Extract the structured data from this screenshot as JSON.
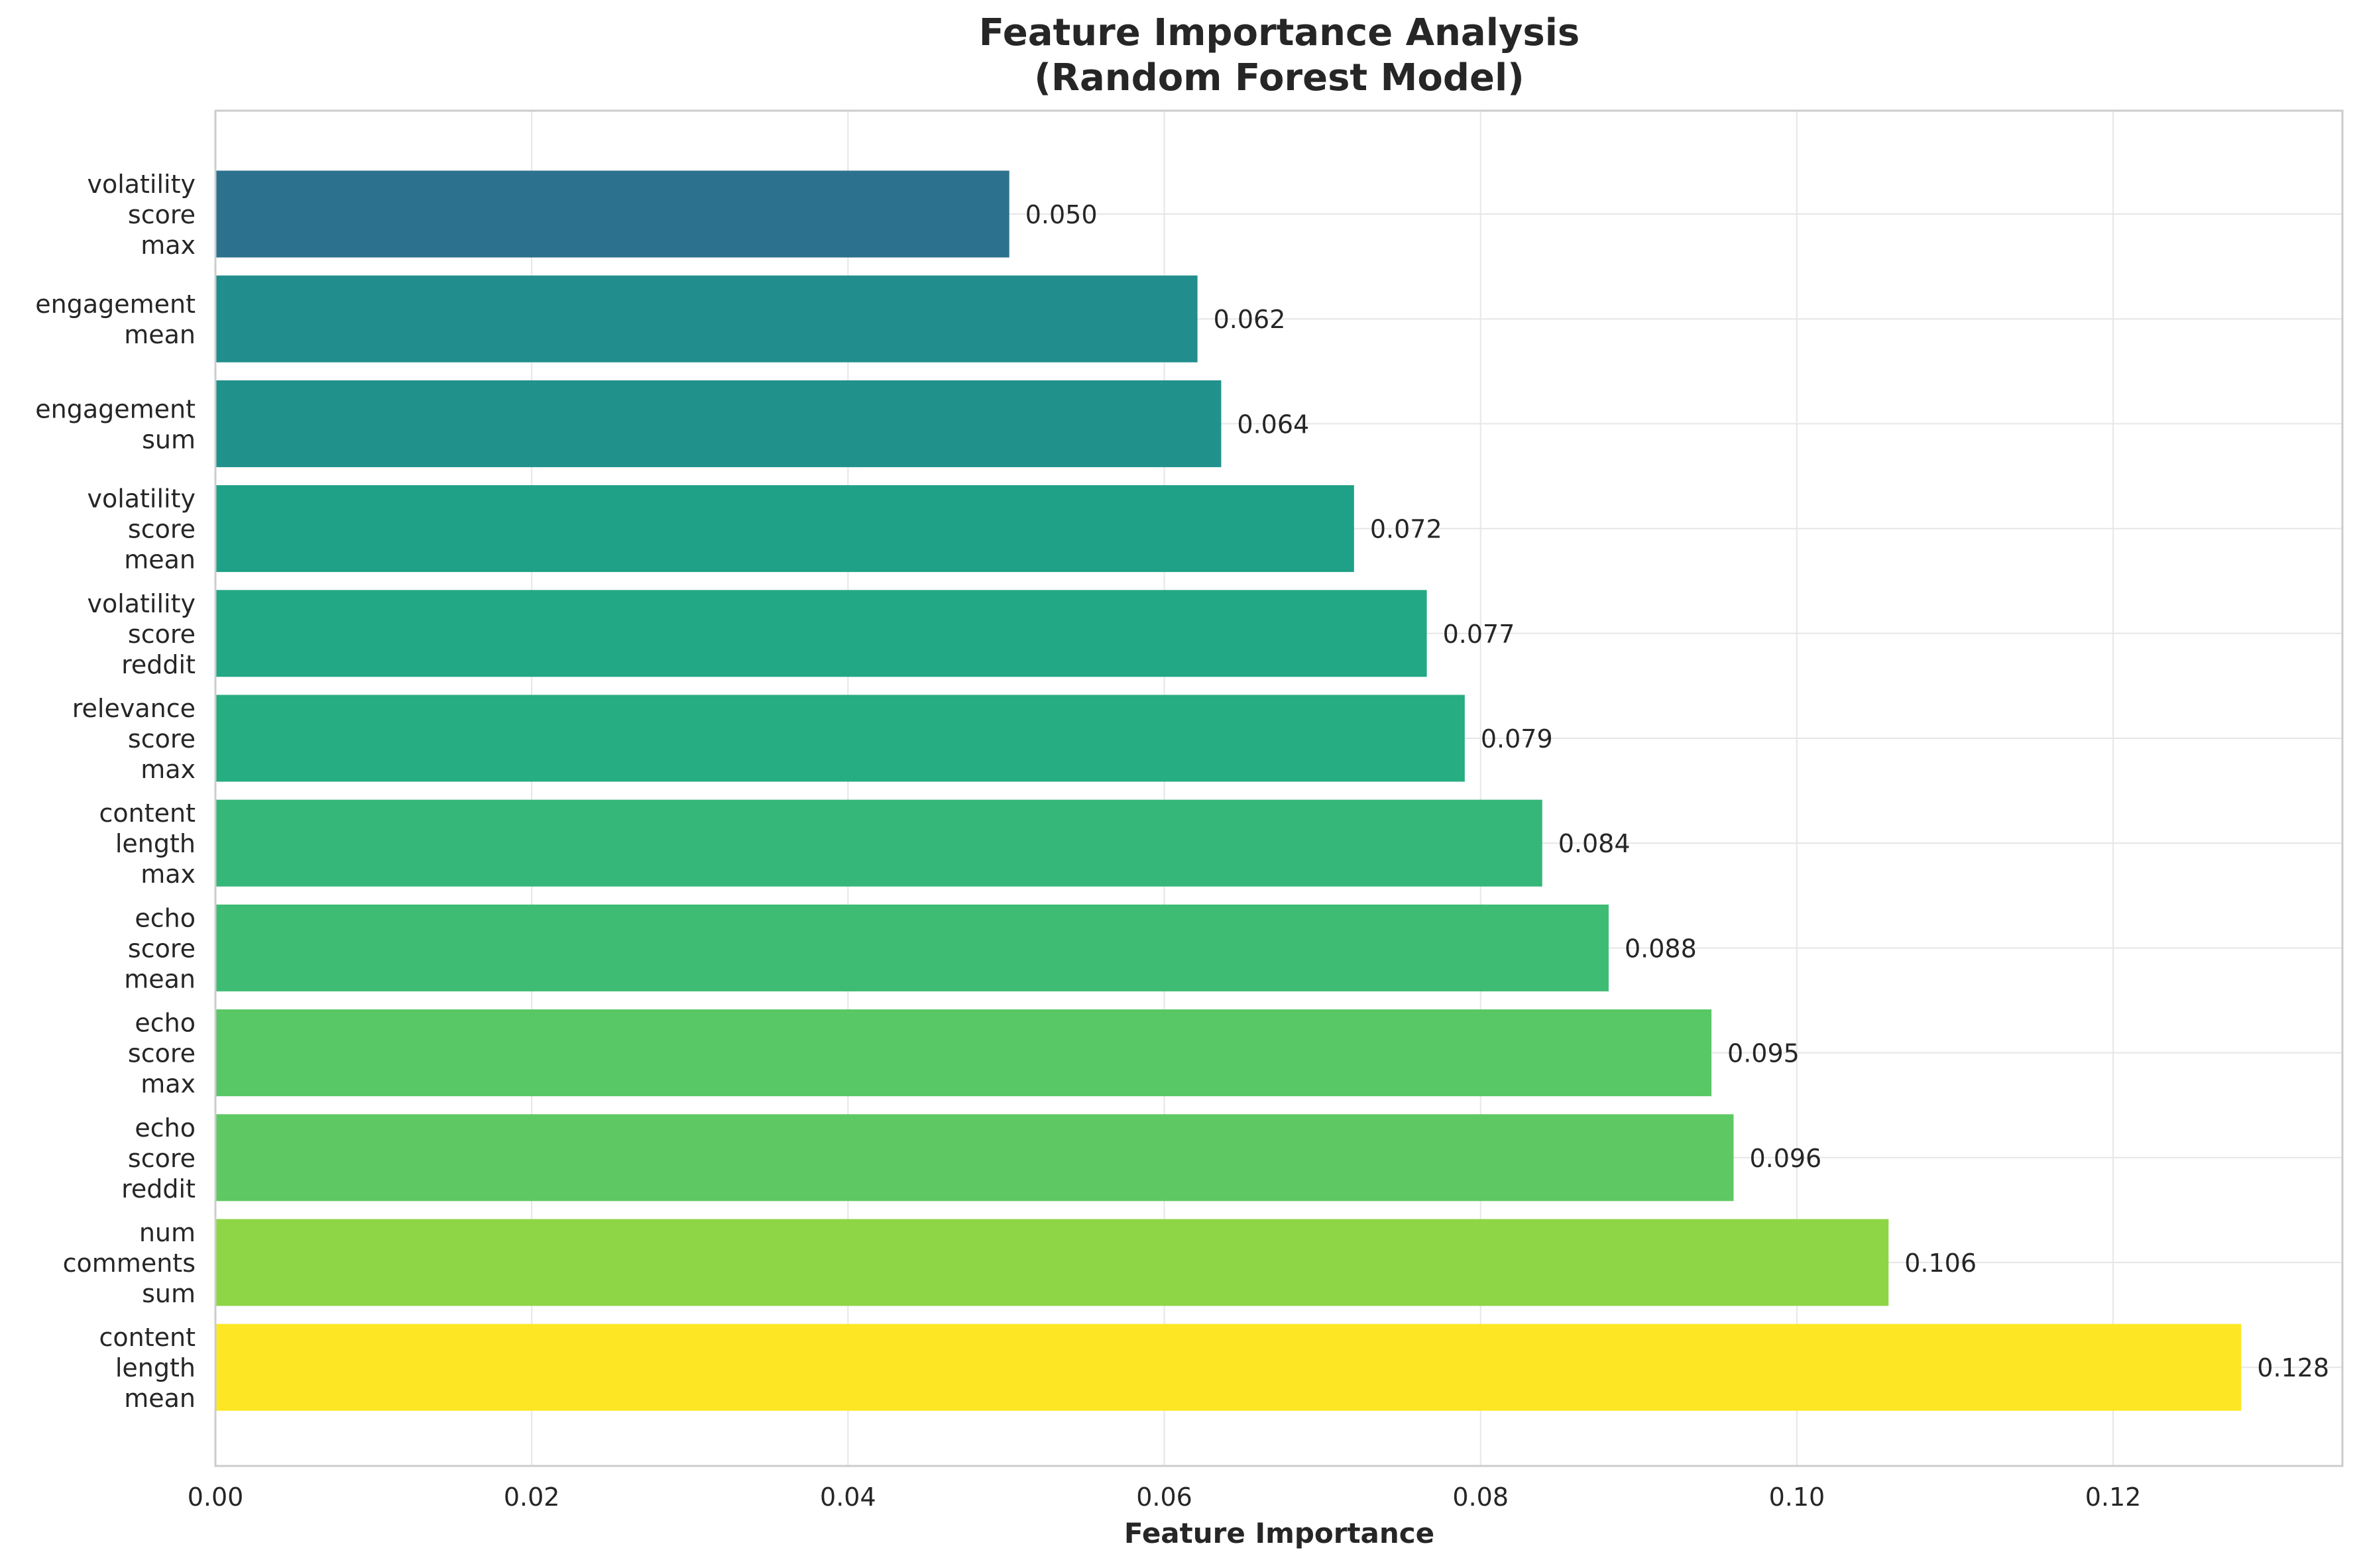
{
  "chart_data": {
    "type": "bar",
    "orientation": "horizontal",
    "title": [
      "Feature Importance Analysis",
      "(Random Forest Model)"
    ],
    "xlabel": "Feature Importance",
    "ylabel": "",
    "xlim": [
      0.0,
      0.1345
    ],
    "xticks": [
      0.0,
      0.02,
      0.04,
      0.06,
      0.08,
      0.1,
      0.12
    ],
    "xtick_labels": [
      "0.00",
      "0.02",
      "0.04",
      "0.06",
      "0.08",
      "0.10",
      "0.12"
    ],
    "grid": true,
    "categories": [
      [
        "volatility",
        "score",
        "max"
      ],
      [
        "engagement",
        "mean"
      ],
      [
        "engagement",
        "sum"
      ],
      [
        "volatility",
        "score",
        "mean"
      ],
      [
        "volatility",
        "score",
        "reddit"
      ],
      [
        "relevance",
        "score",
        "max"
      ],
      [
        "content",
        "length",
        "max"
      ],
      [
        "echo",
        "score",
        "mean"
      ],
      [
        "echo",
        "score",
        "max"
      ],
      [
        "echo",
        "score",
        "reddit"
      ],
      [
        "num",
        "comments",
        "sum"
      ],
      [
        "content",
        "length",
        "mean"
      ]
    ],
    "values": [
      0.0502,
      0.0621,
      0.0636,
      0.072,
      0.0766,
      0.079,
      0.0839,
      0.0881,
      0.0946,
      0.096,
      0.1058,
      0.1281
    ],
    "value_labels": [
      "0.050",
      "0.062",
      "0.064",
      "0.072",
      "0.077",
      "0.079",
      "0.084",
      "0.088",
      "0.095",
      "0.096",
      "0.106",
      "0.128"
    ],
    "colors": [
      "#2c728e",
      "#228d8d",
      "#21918c",
      "#1fa187",
      "#22a884",
      "#26ad81",
      "#35b779",
      "#3fbc73",
      "#58c765",
      "#5ec962",
      "#8ed645",
      "#fde725"
    ]
  }
}
